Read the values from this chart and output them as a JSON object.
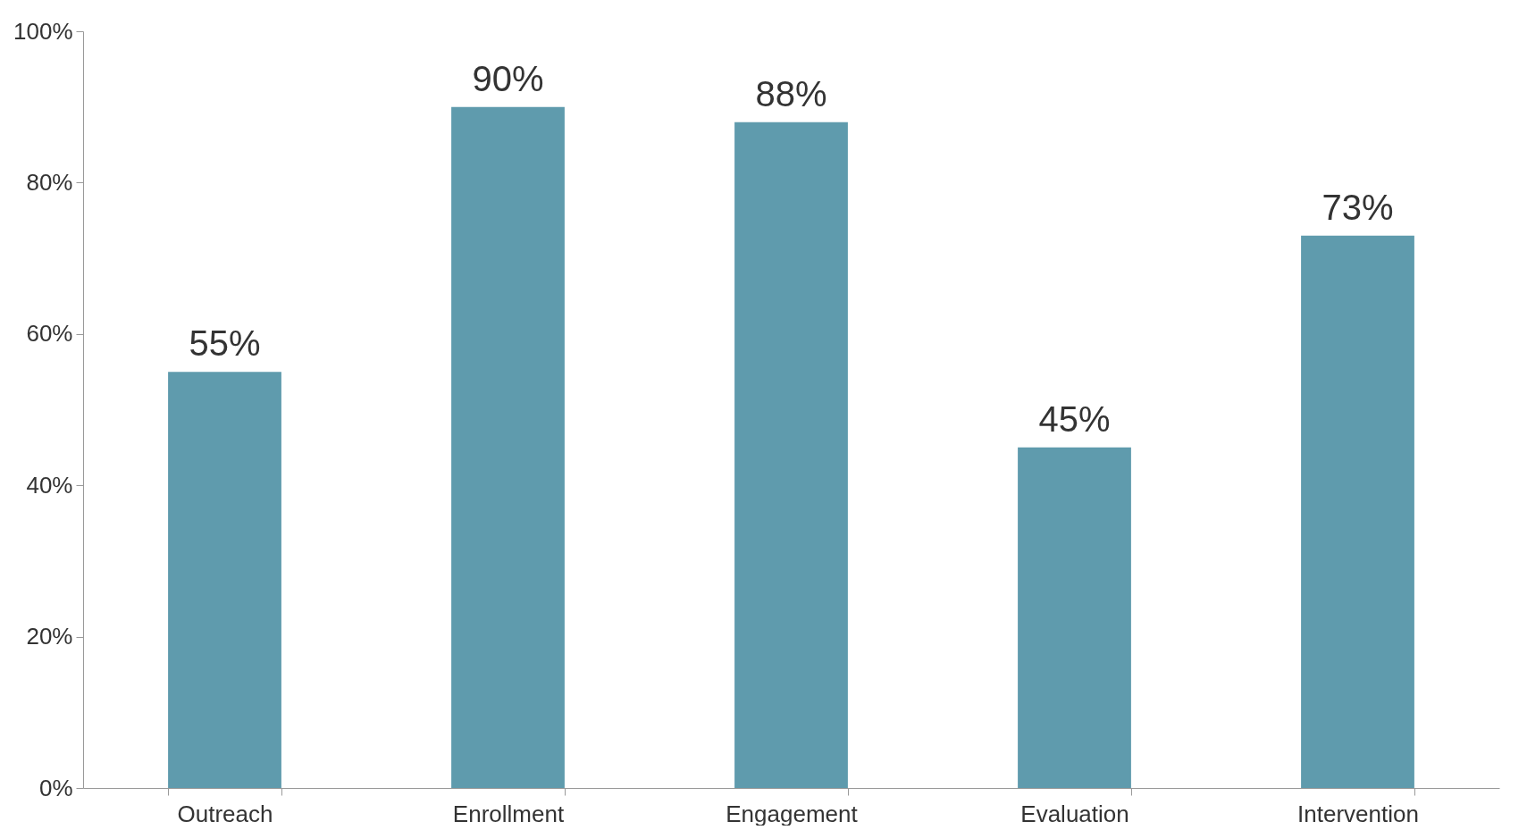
{
  "chart_data": {
    "type": "bar",
    "categories": [
      "Outreach",
      "Enrollment",
      "Engagement",
      "Evaluation",
      "Intervention"
    ],
    "values": [
      55,
      90,
      88,
      45,
      73
    ],
    "value_labels": [
      "55%",
      "90%",
      "88%",
      "45%",
      "73%"
    ],
    "color": "#5f9bad",
    "ylim": [
      0,
      100
    ],
    "yticks": [
      {
        "value": 0,
        "label": "0%"
      },
      {
        "value": 20,
        "label": "20%"
      },
      {
        "value": 40,
        "label": "40%"
      },
      {
        "value": 60,
        "label": "60%"
      },
      {
        "value": 80,
        "label": "80%"
      },
      {
        "value": 100,
        "label": "100%"
      }
    ],
    "grid": false
  }
}
